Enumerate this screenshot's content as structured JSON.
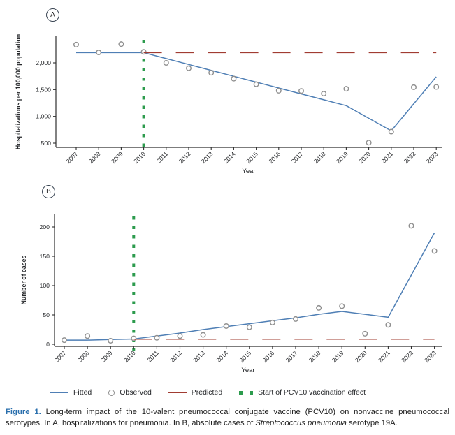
{
  "figure": {
    "panels": {
      "a": "A",
      "b": "B"
    },
    "legend": [
      {
        "key": "fitted",
        "label": "Fitted"
      },
      {
        "key": "observed",
        "label": "Observed"
      },
      {
        "key": "predicted",
        "label": "Predicted"
      },
      {
        "key": "vaccination",
        "label": "Start of PCV10 vaccination effect"
      }
    ],
    "caption": {
      "label": "Figure 1.",
      "text_before_italic": " Long-term impact of the 10-valent pneumococcal conjugate vaccine (PCV10) on nonvaccine pneumococcal serotypes. In A, hospitalizations for pneumonia. In B, absolute cases of ",
      "italic": "Streptococcus pneumonia",
      "text_after_italic": " serotype 19A."
    }
  },
  "colors": {
    "fitted": "#4f7fb5",
    "observed": "#8f8f8f",
    "predicted": "#a13c32",
    "vaccination": "#2c9b4d",
    "axis": "#2f2f2f",
    "text": "#26282b",
    "caption_label": "#2a6fad"
  },
  "chart_data": [
    {
      "type": "line",
      "panel": "A",
      "title": "",
      "xlabel": "Year",
      "ylabel": "Hospitalizations per 100,000 population",
      "categories": [
        "2007",
        "2008",
        "2009",
        "2010",
        "2011",
        "2012",
        "2013",
        "2014",
        "2015",
        "2016",
        "2017",
        "2018",
        "2019",
        "2020",
        "2021",
        "2022",
        "2023"
      ],
      "yticks": [
        500,
        1000,
        1500,
        2000
      ],
      "ytick_labels": [
        "500",
        "1,000",
        "1,500",
        "2,000"
      ],
      "ylim": [
        420,
        2500
      ],
      "grid": false,
      "legend_position": "bottom",
      "vline": {
        "at": "2010",
        "label": "Start of PCV10 vaccination effect"
      },
      "series": [
        {
          "name": "Fitted",
          "style": "solid-line",
          "values": [
            2190,
            2190,
            2190,
            2190,
            2080,
            1970,
            1860,
            1750,
            1640,
            1530,
            1420,
            1310,
            1200,
            965,
            730,
            1235,
            1740
          ]
        },
        {
          "name": "Observed",
          "style": "open-circles",
          "values": [
            2340,
            2195,
            2350,
            2205,
            2000,
            1900,
            1815,
            1705,
            1600,
            1480,
            1475,
            1425,
            1515,
            510,
            715,
            1545,
            1550
          ]
        },
        {
          "name": "Predicted",
          "style": "dashed-line",
          "start": "2010",
          "constant_value": 2190
        }
      ]
    },
    {
      "type": "line",
      "panel": "B",
      "title": "",
      "xlabel": "Year",
      "ylabel": "Number of cases",
      "categories": [
        "2007",
        "2008",
        "2009",
        "2010",
        "2011",
        "2012",
        "2013",
        "2014",
        "2015",
        "2016",
        "2017",
        "2018",
        "2019",
        "2020",
        "2021",
        "2022",
        "2023"
      ],
      "yticks": [
        0,
        50,
        100,
        150,
        200
      ],
      "ytick_labels": [
        "0",
        "50",
        "100",
        "150",
        "200"
      ],
      "ylim": [
        -8,
        222
      ],
      "grid": false,
      "legend_position": "bottom",
      "vline": {
        "at": "2010",
        "label": "Start of PCV10 vaccination effect"
      },
      "series": [
        {
          "name": "Fitted",
          "style": "solid-line",
          "values": [
            7,
            7,
            8,
            9,
            14,
            19,
            25,
            30,
            35,
            40,
            45,
            51,
            56,
            51,
            46,
            118,
            190
          ]
        },
        {
          "name": "Observed",
          "style": "open-circles",
          "values": [
            7,
            14,
            6,
            10,
            11,
            14,
            16,
            31,
            29,
            37,
            43,
            62,
            65,
            18,
            33,
            202,
            159
          ]
        },
        {
          "name": "Predicted",
          "style": "dashed-line",
          "start": "2010",
          "constant_value": 8.5
        }
      ]
    }
  ]
}
